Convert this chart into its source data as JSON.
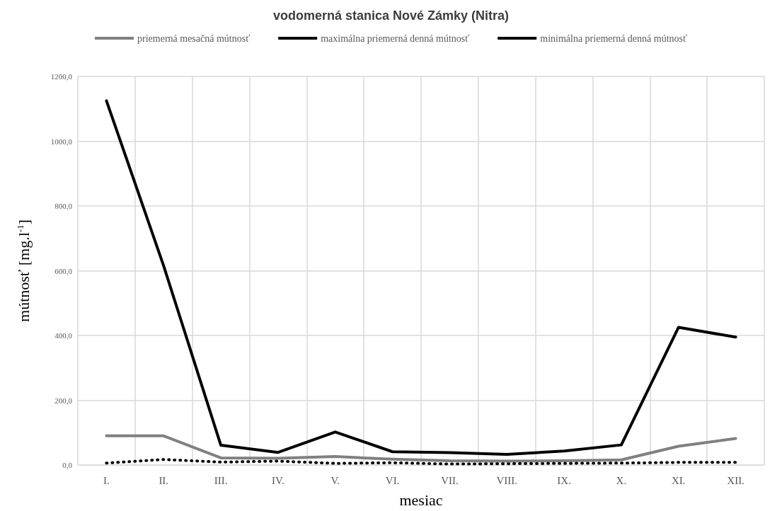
{
  "chart_data": {
    "type": "line",
    "title": "vodomerná stanica Nové Zámky (Nitra)",
    "xlabel": "mesiac",
    "ylabel": "mútnosť [mg.l$^{-1}$]",
    "categories": [
      "I.",
      "II.",
      "III.",
      "IV.",
      "V.",
      "VI.",
      "VII.",
      "VIII.",
      "IX.",
      "X.",
      "XI.",
      "XII."
    ],
    "series": [
      {
        "name": "priemerná mesačná mútnosť",
        "color": "#808080",
        "line_style": "solid",
        "values": [
          90,
          90,
          22,
          21,
          26,
          18,
          13,
          12,
          13,
          16,
          58,
          82
        ]
      },
      {
        "name": "maximálna priemerná denná mútnosť",
        "color": "#000000",
        "line_style": "solid",
        "values": [
          1125,
          615,
          61,
          39,
          102,
          41,
          38,
          33,
          43,
          62,
          425,
          395
        ]
      },
      {
        "name": "minimálna priemerná denná mútnosť",
        "color": "#000000",
        "line_style": "dotted",
        "values": [
          6,
          17,
          9,
          12,
          5,
          7,
          3,
          4,
          5,
          6,
          8,
          8
        ]
      }
    ],
    "ylim": [
      0,
      1200
    ],
    "yticks": [
      {
        "value": 0,
        "label": "0,0"
      },
      {
        "value": 200,
        "label": "200,0"
      },
      {
        "value": 400,
        "label": "400,0"
      },
      {
        "value": 600,
        "label": "600,0"
      },
      {
        "value": 800,
        "label": "800,0"
      },
      {
        "value": 1000,
        "label": "1000,0"
      },
      {
        "value": 1200,
        "label": "1200,0"
      }
    ],
    "grid": true,
    "legend": "top",
    "marker": "none"
  }
}
